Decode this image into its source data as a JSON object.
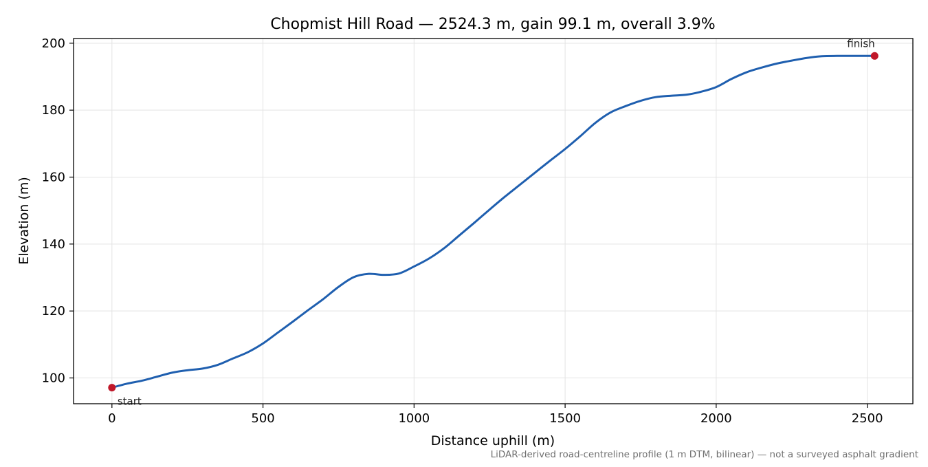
{
  "chart_data": {
    "type": "line",
    "title": "Chopmist Hill Road — 2524.3 m, gain 99.1 m, overall 3.9%",
    "xlabel": "Distance uphill (m)",
    "ylabel": "Elevation (m)",
    "xlim": [
      -127,
      2651
    ],
    "ylim": [
      92.3,
      201.4
    ],
    "xticks": [
      0,
      500,
      1000,
      1500,
      2000,
      2500
    ],
    "yticks": [
      100,
      120,
      140,
      160,
      180,
      200
    ],
    "grid": true,
    "line_color": "#1f5faf",
    "marker_color": "#c0182a",
    "series": [
      {
        "x": [
          0,
          50,
          100,
          150,
          200,
          250,
          300,
          350,
          400,
          450,
          500,
          550,
          600,
          650,
          700,
          750,
          800,
          850,
          900,
          950,
          1000,
          1050,
          1100,
          1150,
          1200,
          1250,
          1300,
          1350,
          1400,
          1450,
          1500,
          1550,
          1600,
          1650,
          1700,
          1750,
          1800,
          1850,
          1900,
          1950,
          2000,
          2050,
          2100,
          2150,
          2200,
          2250,
          2300,
          2350,
          2400,
          2450,
          2524.3
        ],
        "y": [
          97.1,
          98.3,
          99.2,
          100.4,
          101.6,
          102.3,
          102.8,
          103.9,
          105.8,
          107.7,
          110.3,
          113.6,
          116.9,
          120.3,
          123.6,
          127.2,
          130.1,
          131.1,
          130.8,
          131.2,
          133.3,
          135.7,
          138.8,
          142.6,
          146.4,
          150.3,
          154.1,
          157.7,
          161.3,
          164.9,
          168.4,
          172.2,
          176.2,
          179.3,
          181.2,
          182.8,
          183.9,
          184.3,
          184.6,
          185.5,
          186.9,
          189.3,
          191.3,
          192.7,
          193.9,
          194.8,
          195.6,
          196.1,
          196.2,
          196.2,
          196.2
        ]
      }
    ],
    "annotations": [
      {
        "text": "start",
        "x": 0,
        "y": 97.1
      },
      {
        "text": "finish",
        "x": 2524.3,
        "y": 196.2
      }
    ],
    "footnote": "LiDAR-derived road-centreline profile (1 m DTM, bilinear) — not a surveyed asphalt gradient"
  }
}
